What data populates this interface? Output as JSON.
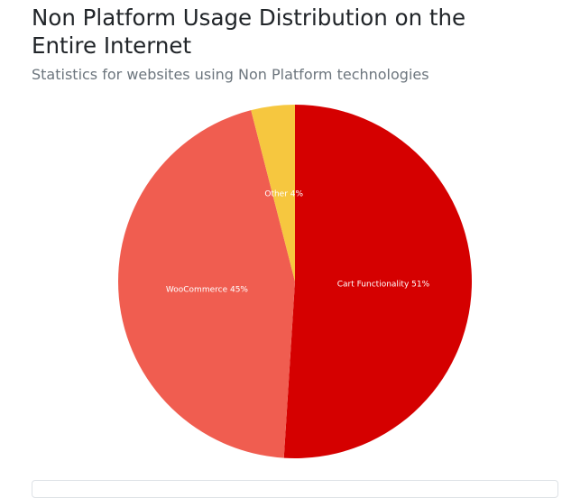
{
  "header": {
    "title": "Non Platform Usage Distribution on the Entire Internet",
    "subtitle": "Statistics for websites using Non Platform technologies"
  },
  "colors": {
    "cart": "#d50000",
    "woocommerce": "#f05d50",
    "other": "#f6c73f"
  },
  "chart_data": {
    "type": "pie",
    "title": "Non Platform Usage Distribution on the Entire Internet",
    "slices": [
      {
        "label": "Cart Functionality 51%",
        "name": "Cart Functionality",
        "value": 51,
        "color": "#d50000"
      },
      {
        "label": "WooCommerce 45%",
        "name": "WooCommerce",
        "value": 45,
        "color": "#f05d50"
      },
      {
        "label": "Other 4%",
        "name": "Other",
        "value": 4,
        "color": "#f6c73f"
      }
    ]
  }
}
